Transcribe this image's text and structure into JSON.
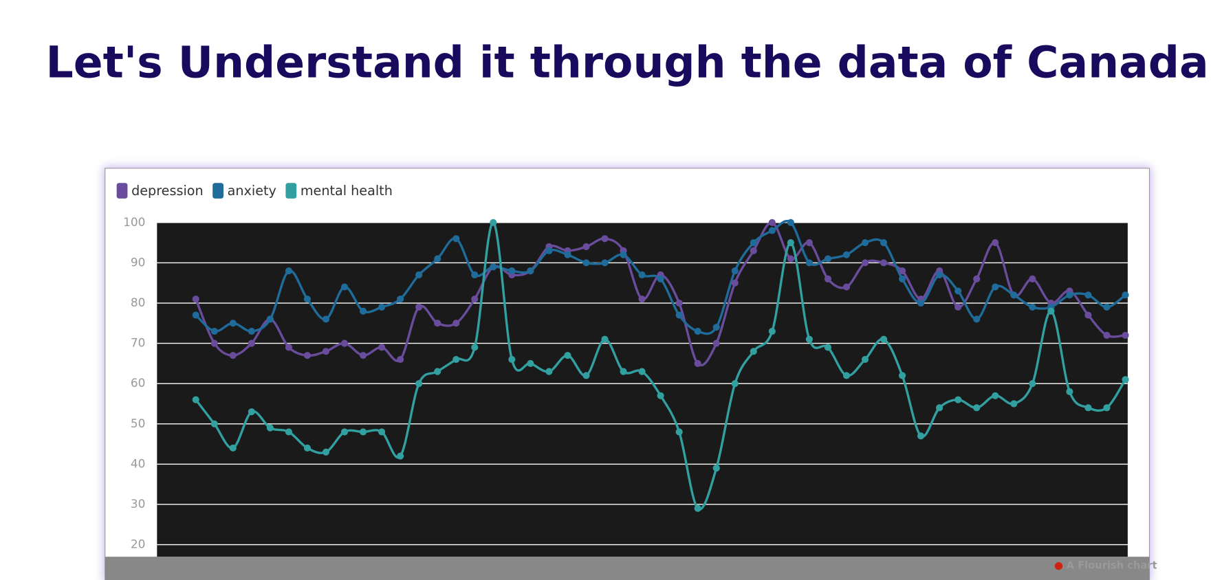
{
  "heading": "Let's Understand it through the data of Canada",
  "credit": "A Flourish chart",
  "chart_data": {
    "type": "line",
    "categories": [
      null,
      null,
      null,
      null,
      null,
      null,
      null,
      null,
      null,
      null,
      null,
      null,
      null,
      null,
      null,
      null,
      null,
      null,
      null,
      null,
      null,
      null,
      null,
      null,
      null,
      null,
      null,
      null,
      null,
      null,
      null,
      null,
      null,
      null,
      null,
      null,
      null,
      null,
      null,
      null,
      null,
      null,
      null,
      null,
      null,
      null,
      null,
      null,
      null,
      null,
      null
    ],
    "series": [
      {
        "name": "depression",
        "color": "#6a4c9c",
        "values": [
          81,
          70,
          67,
          70,
          76,
          69,
          67,
          68,
          70,
          67,
          69,
          66,
          79,
          75,
          75,
          81,
          89,
          87,
          88,
          94,
          93,
          94,
          96,
          93,
          81,
          87,
          80,
          65,
          70,
          85,
          93,
          100,
          91,
          95,
          86,
          84,
          90,
          90,
          88,
          81,
          88,
          79,
          86,
          95,
          82,
          86,
          80,
          83,
          77,
          72,
          72
        ]
      },
      {
        "name": "anxiety",
        "color": "#1f6b99",
        "values": [
          77,
          73,
          75,
          73,
          76,
          88,
          81,
          76,
          84,
          78,
          79,
          81,
          87,
          91,
          96,
          87,
          89,
          88,
          88,
          93,
          92,
          90,
          90,
          92,
          87,
          86,
          77,
          73,
          74,
          88,
          95,
          98,
          100,
          90,
          91,
          92,
          95,
          95,
          86,
          80,
          87,
          83,
          76,
          84,
          82,
          79,
          79,
          82,
          82,
          79,
          82
        ]
      },
      {
        "name": "mental health",
        "color": "#32a0a0",
        "values": [
          56,
          50,
          44,
          53,
          49,
          48,
          44,
          43,
          48,
          48,
          48,
          42,
          60,
          63,
          66,
          69,
          100,
          66,
          65,
          63,
          67,
          62,
          71,
          63,
          63,
          57,
          48,
          29,
          39,
          60,
          68,
          73,
          95,
          71,
          69,
          62,
          66,
          71,
          62,
          47,
          54,
          56,
          54,
          57,
          55,
          60,
          78,
          58,
          54,
          54,
          61
        ]
      }
    ],
    "ylim": [
      17,
      100
    ],
    "yticks": [
      20,
      30,
      40,
      50,
      60,
      70,
      80,
      90,
      100
    ],
    "grid": true,
    "legend": "top-left"
  }
}
